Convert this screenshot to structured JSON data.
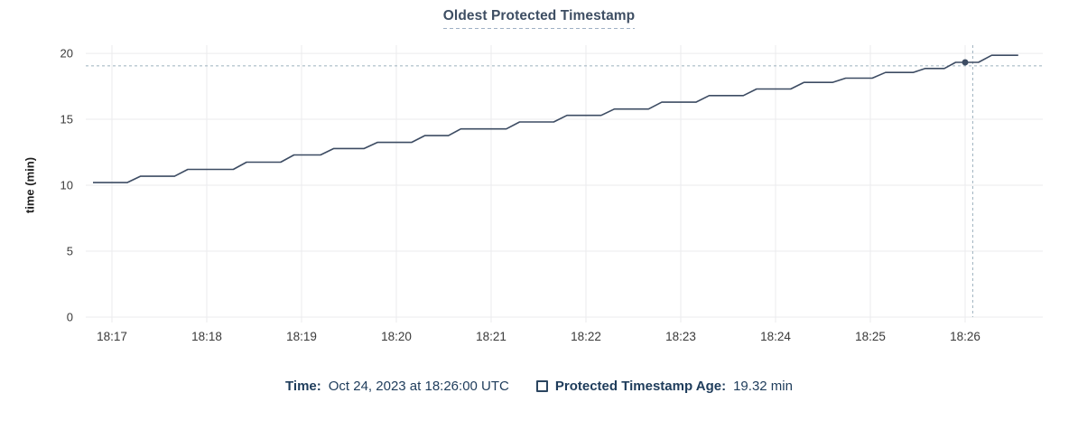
{
  "title": "Oldest Protected Timestamp",
  "y_axis_title": "time (min)",
  "legend": {
    "time_label": "Time:",
    "time_value": "Oct 24, 2023 at 18:26:00 UTC",
    "series_label": "Protected Timestamp Age:",
    "series_value": "19.32 min"
  },
  "colors": {
    "line": "#3d4c63",
    "marker": "#3d4c63",
    "crosshair": "#9cb1bd",
    "grid": "#ebebed",
    "title_text": "#3e4e63",
    "title_underline": "#9fb0c4",
    "axis_text": "#3a3a3a",
    "axis_strong": "#1f1f1f",
    "legend_text": "#1e3c5b",
    "checkbox_border": "#2b4560"
  },
  "chart_data": {
    "type": "line",
    "title": "Oldest Protected Timestamp",
    "ylabel": "time (min)",
    "xlabel": "",
    "grid": true,
    "legend_position": "bottom",
    "series_name": "Protected Timestamp Age",
    "x_unit": "decimal minutes after 18:00 UTC",
    "y_unit": "min",
    "xlim": [
      16.724,
      26.819
    ],
    "ylim": [
      0,
      20.62
    ],
    "x_ticks": [
      {
        "t": 17,
        "label": "18:17"
      },
      {
        "t": 18,
        "label": "18:18"
      },
      {
        "t": 19,
        "label": "18:19"
      },
      {
        "t": 20,
        "label": "18:20"
      },
      {
        "t": 21,
        "label": "18:21"
      },
      {
        "t": 22,
        "label": "18:22"
      },
      {
        "t": 23,
        "label": "18:23"
      },
      {
        "t": 24,
        "label": "18:24"
      },
      {
        "t": 25,
        "label": "18:25"
      },
      {
        "t": 26,
        "label": "18:26"
      }
    ],
    "y_ticks": [
      0,
      5,
      10,
      15,
      20
    ],
    "points": [
      [
        16.8,
        10.2
      ],
      [
        17.16,
        10.2
      ],
      [
        17.3,
        10.68
      ],
      [
        17.66,
        10.68
      ],
      [
        17.8,
        11.2
      ],
      [
        18.28,
        11.2
      ],
      [
        18.42,
        11.75
      ],
      [
        18.78,
        11.75
      ],
      [
        18.92,
        12.3
      ],
      [
        19.2,
        12.3
      ],
      [
        19.34,
        12.78
      ],
      [
        19.66,
        12.78
      ],
      [
        19.8,
        13.25
      ],
      [
        20.16,
        13.25
      ],
      [
        20.3,
        13.76
      ],
      [
        20.55,
        13.76
      ],
      [
        20.68,
        14.27
      ],
      [
        21.16,
        14.27
      ],
      [
        21.3,
        14.8
      ],
      [
        21.66,
        14.8
      ],
      [
        21.8,
        15.3
      ],
      [
        22.16,
        15.3
      ],
      [
        22.3,
        15.78
      ],
      [
        22.66,
        15.78
      ],
      [
        22.8,
        16.3
      ],
      [
        23.16,
        16.3
      ],
      [
        23.3,
        16.8
      ],
      [
        23.66,
        16.8
      ],
      [
        23.8,
        17.3
      ],
      [
        24.16,
        17.3
      ],
      [
        24.3,
        17.8
      ],
      [
        24.6,
        17.8
      ],
      [
        24.74,
        18.12
      ],
      [
        25.02,
        18.12
      ],
      [
        25.16,
        18.55
      ],
      [
        25.45,
        18.55
      ],
      [
        25.58,
        18.85
      ],
      [
        25.78,
        18.85
      ],
      [
        25.9,
        19.32
      ],
      [
        26.14,
        19.32
      ],
      [
        26.28,
        19.85
      ],
      [
        26.56,
        19.85
      ]
    ],
    "hover": {
      "time_label": "Oct 24, 2023 at 18:26:00 UTC",
      "value_min": 19.32,
      "marker_t": 26.0,
      "marker_v": 19.32,
      "crosshair_t": 26.08,
      "crosshair_v": 19.05
    }
  }
}
